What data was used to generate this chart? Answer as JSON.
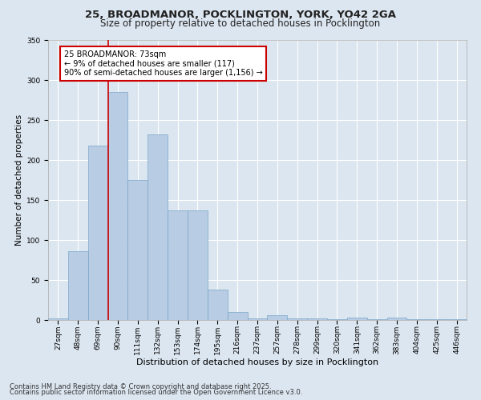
{
  "title_line1": "25, BROADMANOR, POCKLINGTON, YORK, YO42 2GA",
  "title_line2": "Size of property relative to detached houses in Pocklington",
  "xlabel": "Distribution of detached houses by size in Pocklington",
  "ylabel": "Number of detached properties",
  "categories": [
    "27sqm",
    "48sqm",
    "69sqm",
    "90sqm",
    "111sqm",
    "132sqm",
    "153sqm",
    "174sqm",
    "195sqm",
    "216sqm",
    "237sqm",
    "257sqm",
    "278sqm",
    "299sqm",
    "320sqm",
    "341sqm",
    "362sqm",
    "383sqm",
    "404sqm",
    "425sqm",
    "446sqm"
  ],
  "values": [
    2,
    86,
    218,
    285,
    175,
    232,
    137,
    137,
    38,
    10,
    2,
    6,
    2,
    2,
    1,
    3,
    1,
    3,
    1,
    1,
    1
  ],
  "bar_color": "#b8cce4",
  "bar_edge_color": "#7aa6c8",
  "red_line_x": 2.5,
  "annotation_text": "25 BROADMANOR: 73sqm\n← 9% of detached houses are smaller (117)\n90% of semi-detached houses are larger (1,156) →",
  "annotation_box_color": "#ffffff",
  "annotation_box_edge": "#cc0000",
  "ylim": [
    0,
    350
  ],
  "yticks": [
    0,
    50,
    100,
    150,
    200,
    250,
    300,
    350
  ],
  "background_color": "#dce6f0",
  "plot_bg_color": "#dce6f0",
  "grid_color": "#ffffff",
  "footer_line1": "Contains HM Land Registry data © Crown copyright and database right 2025.",
  "footer_line2": "Contains public sector information licensed under the Open Government Licence v3.0.",
  "title_fontsize": 9.5,
  "subtitle_fontsize": 8.5,
  "annot_fontsize": 7,
  "tick_fontsize": 6.5,
  "xlabel_fontsize": 8,
  "ylabel_fontsize": 7.5,
  "footer_fontsize": 6
}
